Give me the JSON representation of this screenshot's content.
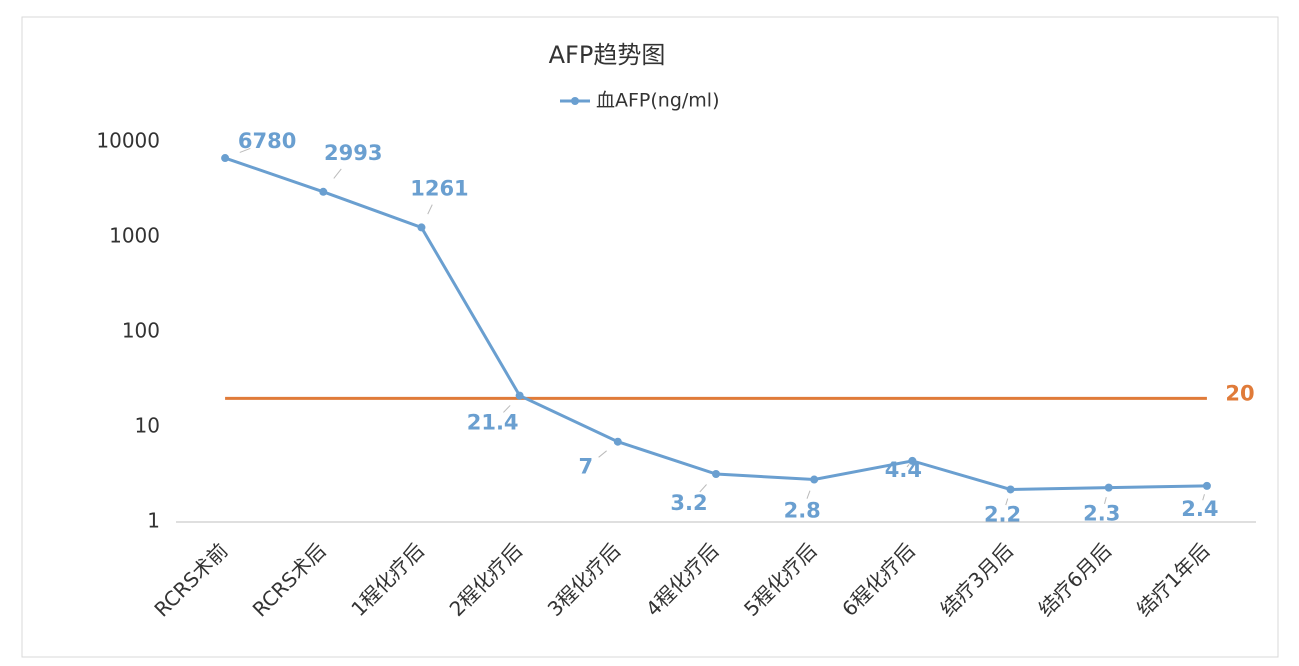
{
  "chart_data": {
    "type": "line",
    "title": "AFP趋势图",
    "categories": [
      "RCRS术前",
      "RCRS术后",
      "1程化疗后",
      "2程化疗后",
      "3程化疗后",
      "4程化疗后",
      "5程化疗后",
      "6程化疗后",
      "结疗3月后",
      "结疗6月后",
      "结疗1年后"
    ],
    "series": [
      {
        "name": "血AFP(ng/ml)",
        "color": "#6a9fd0",
        "values": [
          6780,
          2993,
          1261,
          21.4,
          7,
          3.2,
          2.8,
          4.4,
          2.2,
          2.3,
          2.4
        ]
      }
    ],
    "ylim": [
      1,
      10000
    ],
    "yticks": [
      1,
      10,
      100,
      1000,
      10000
    ],
    "log_scale": true,
    "grid": false,
    "legend": "top",
    "reference_line": {
      "value": 20,
      "color": "#e07b39"
    }
  }
}
